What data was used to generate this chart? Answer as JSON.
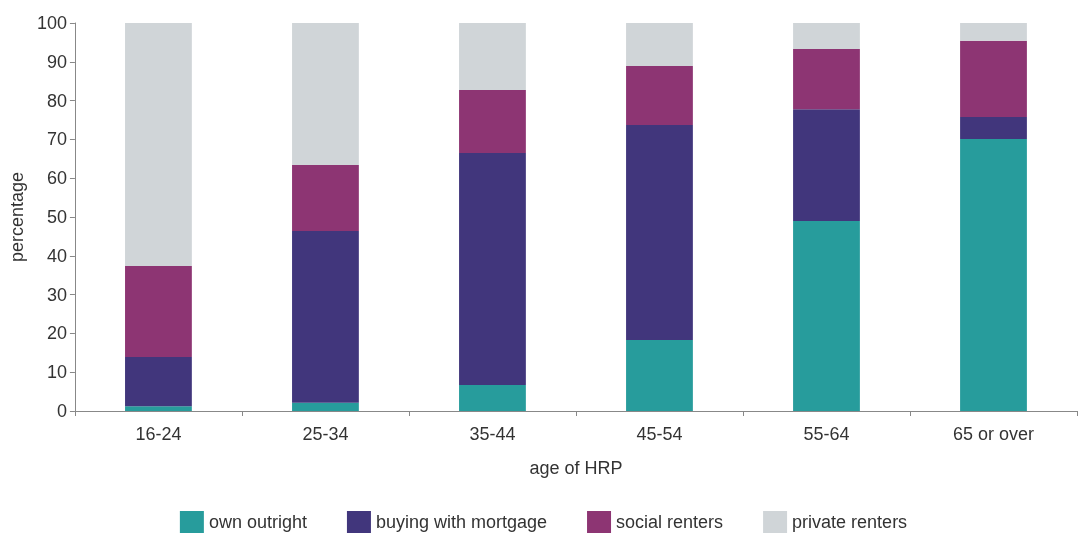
{
  "chart_data": {
    "type": "bar",
    "stacked": true,
    "xlabel": "age of HRP",
    "ylabel": "percentage",
    "categories": [
      "16-24",
      "25-34",
      "35-44",
      "45-54",
      "55-64",
      "65 or over"
    ],
    "series": [
      {
        "name": "own outright",
        "color": "#279c9c",
        "values": [
          1.2,
          2.1,
          6.7,
          18.3,
          49.0,
          70.1
        ]
      },
      {
        "name": "buying with mortgage",
        "color": "#41367c",
        "values": [
          12.7,
          44.3,
          59.8,
          55.4,
          28.8,
          5.7
        ]
      },
      {
        "name": "social renters",
        "color": "#8d3573",
        "values": [
          23.5,
          17.0,
          16.2,
          15.2,
          15.5,
          19.6
        ]
      },
      {
        "name": "private renters",
        "color": "#d0d5d8",
        "values": [
          62.6,
          36.6,
          17.3,
          11.1,
          6.7,
          4.6
        ]
      }
    ],
    "ylim": [
      0,
      100
    ],
    "yticks": [
      0,
      10,
      20,
      30,
      40,
      50,
      60,
      70,
      80,
      90,
      100
    ],
    "grid": false,
    "legend": "bottom"
  }
}
